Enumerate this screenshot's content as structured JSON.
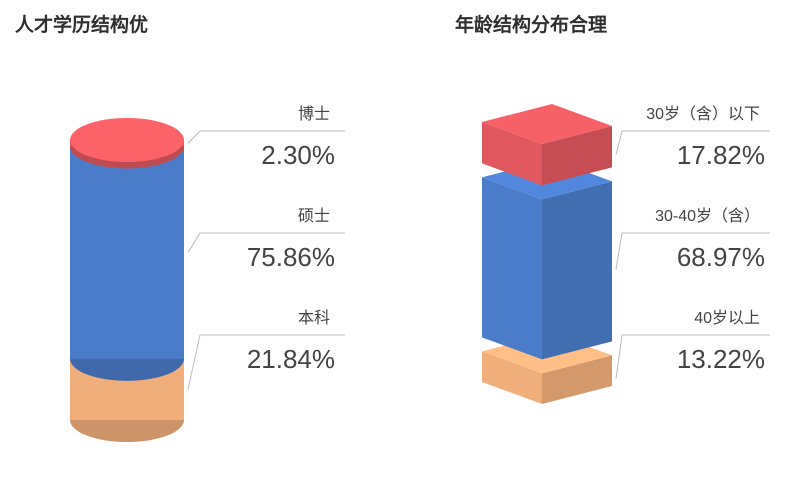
{
  "chart_data": [
    {
      "type": "stacked-cylinder",
      "title": "人才学历结构优",
      "categories": [
        "博士",
        "硕士",
        "本科"
      ],
      "values": [
        2.3,
        75.86,
        21.84
      ],
      "value_labels": [
        "2.30%",
        "75.86%",
        "21.84%"
      ],
      "colors": [
        "#e0585e",
        "#4a7cc9",
        "#f0ae7a"
      ]
    },
    {
      "type": "stacked-cube",
      "title": "年龄结构分布合理",
      "categories": [
        "30岁（含）以下",
        "30-40岁（含）",
        "40岁以上"
      ],
      "values": [
        17.82,
        68.97,
        13.22
      ],
      "value_labels": [
        "17.82%",
        "68.97%",
        "13.22%"
      ],
      "colors": [
        "#e0585e",
        "#4a7cc9",
        "#f0ae7a"
      ]
    }
  ]
}
